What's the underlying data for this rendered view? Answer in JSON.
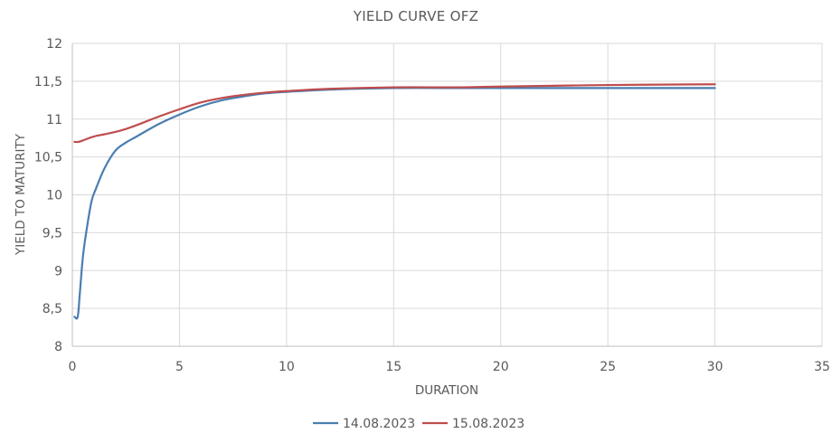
{
  "chart_data": {
    "type": "line",
    "title": "YIELD CURVE OFZ",
    "xlabel": "DURATION",
    "ylabel": "YIELD TO MATURITY",
    "xlim": [
      0,
      35
    ],
    "ylim": [
      8,
      12
    ],
    "xticks": [
      0,
      5,
      10,
      15,
      20,
      25,
      30,
      35
    ],
    "xtick_labels": [
      "0",
      "5",
      "10",
      "15",
      "20",
      "25",
      "30",
      "35"
    ],
    "yticks": [
      8,
      8.5,
      9,
      9.5,
      10,
      10.5,
      11,
      11.5,
      12
    ],
    "ytick_labels": [
      "8",
      "8,5",
      "9",
      "9,5",
      "10",
      "10,5",
      "11",
      "11,5",
      "12"
    ],
    "grid": true,
    "legend_position": "bottom",
    "series": [
      {
        "name": "14.08.2023",
        "color": "#4a7eb0",
        "x": [
          0.1,
          0.25,
          0.35,
          0.5,
          0.7,
          0.9,
          1.1,
          1.5,
          2.0,
          2.5,
          3.0,
          4.0,
          5.0,
          6.0,
          7.0,
          8.0,
          9.0,
          10.0,
          12.0,
          15.0,
          18.0,
          20.0,
          25.0,
          30.0
        ],
        "y": [
          8.39,
          8.39,
          8.7,
          9.2,
          9.6,
          9.92,
          10.08,
          10.35,
          10.58,
          10.69,
          10.77,
          10.93,
          11.06,
          11.17,
          11.25,
          11.3,
          11.34,
          11.36,
          11.39,
          11.41,
          11.41,
          11.41,
          11.41,
          11.41
        ]
      },
      {
        "name": "15.08.2023",
        "color": "#bf4d4d",
        "x": [
          0.1,
          0.3,
          0.6,
          1.0,
          1.5,
          2.0,
          2.5,
          3.0,
          4.0,
          5.0,
          6.0,
          7.0,
          8.0,
          9.0,
          10.0,
          12.0,
          15.0,
          18.0,
          20.0,
          25.0,
          30.0
        ],
        "y": [
          10.7,
          10.7,
          10.73,
          10.77,
          10.8,
          10.83,
          10.87,
          10.92,
          11.03,
          11.13,
          11.22,
          11.28,
          11.32,
          11.35,
          11.37,
          11.4,
          11.42,
          11.42,
          11.43,
          11.45,
          11.46
        ]
      }
    ]
  }
}
